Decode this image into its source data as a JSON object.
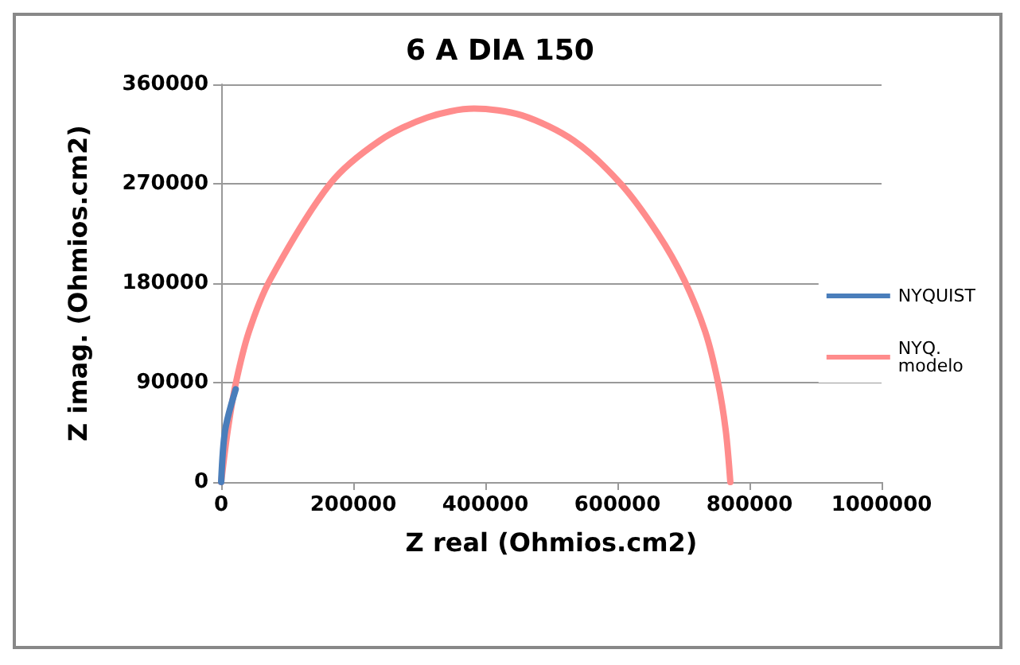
{
  "chart_data": {
    "type": "line",
    "title": "6 A DIA 150",
    "xlabel": "Z real (Ohmios.cm2)",
    "ylabel": "Z imag. (Ohmios.cm2)",
    "xlim": [
      0,
      1000000
    ],
    "xticks": [
      0,
      200000,
      400000,
      600000,
      800000,
      1000000
    ],
    "ylim": [
      0,
      360000
    ],
    "yticks": [
      0,
      90000,
      180000,
      270000,
      360000
    ],
    "grid": "y",
    "legend": "right",
    "marker": "none",
    "line_style": "solid",
    "series": [
      {
        "name": "NYQUIST",
        "color": "#4a7ebb",
        "x": [
          0,
          6000,
          22000
        ],
        "values": [
          0,
          47000,
          84000
        ]
      },
      {
        "name": "NYQ. modelo",
        "color": "#ff8c8c",
        "x": [
          0,
          10000,
          22000,
          42000,
          74000,
          165000,
          240000,
          312000,
          383000,
          455000,
          534000,
          605000,
          661000,
          701000,
          733000,
          752000,
          764000,
          771000
        ],
        "values": [
          0,
          47000,
          89000,
          136000,
          183000,
          270000,
          309000,
          330000,
          338000,
          332000,
          309000,
          270000,
          225000,
          183000,
          136000,
          91000,
          47000,
          0
        ]
      }
    ]
  }
}
